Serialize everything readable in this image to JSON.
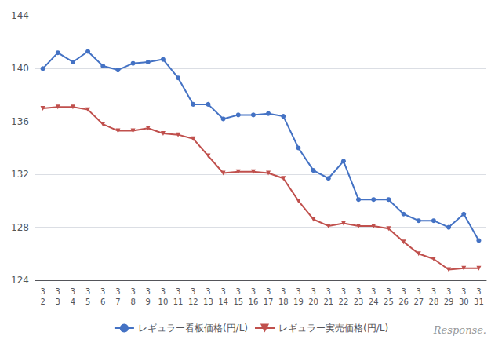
{
  "chart_data": {
    "type": "line",
    "categories": [
      "3\n2",
      "3\n3",
      "3\n4",
      "3\n5",
      "3\n6",
      "3\n7",
      "3\n8",
      "3\n9",
      "3\n10",
      "3\n11",
      "3\n12",
      "3\n13",
      "3\n14",
      "3\n15",
      "3\n16",
      "3\n17",
      "3\n18",
      "3\n19",
      "3\n20",
      "3\n21",
      "3\n22",
      "3\n23",
      "3\n24",
      "3\n25",
      "3\n26",
      "3\n27",
      "3\n28",
      "3\n29",
      "3\n30",
      "3\n31"
    ],
    "series": [
      {
        "name": "レギュラー看板価格(円/L)",
        "color": "#4472C4",
        "marker": "circle",
        "values": [
          140.0,
          141.2,
          140.5,
          141.3,
          140.2,
          139.9,
          140.4,
          140.5,
          140.7,
          139.3,
          137.3,
          137.3,
          136.2,
          136.5,
          136.5,
          136.6,
          136.4,
          134.0,
          132.3,
          131.7,
          133.0,
          130.1,
          130.1,
          130.1,
          129.0,
          128.5,
          128.5,
          128.0,
          129.0,
          127.0
        ]
      },
      {
        "name": "レギュラー実売価格(円/L)",
        "color": "#C0504D",
        "marker": "triangle-down",
        "values": [
          137.0,
          137.1,
          137.1,
          136.9,
          135.8,
          135.3,
          135.3,
          135.5,
          135.1,
          135.0,
          134.7,
          133.4,
          132.1,
          132.2,
          132.2,
          132.1,
          131.7,
          130.0,
          128.6,
          128.1,
          128.3,
          128.1,
          128.1,
          127.9,
          126.9,
          126.0,
          125.6,
          124.8,
          124.9,
          124.9
        ]
      }
    ],
    "ylim": [
      124,
      144
    ],
    "yticks": [
      124,
      128,
      132,
      136,
      140,
      144
    ],
    "grid": true,
    "legend": "bottom",
    "annotations": [
      "Response."
    ]
  }
}
